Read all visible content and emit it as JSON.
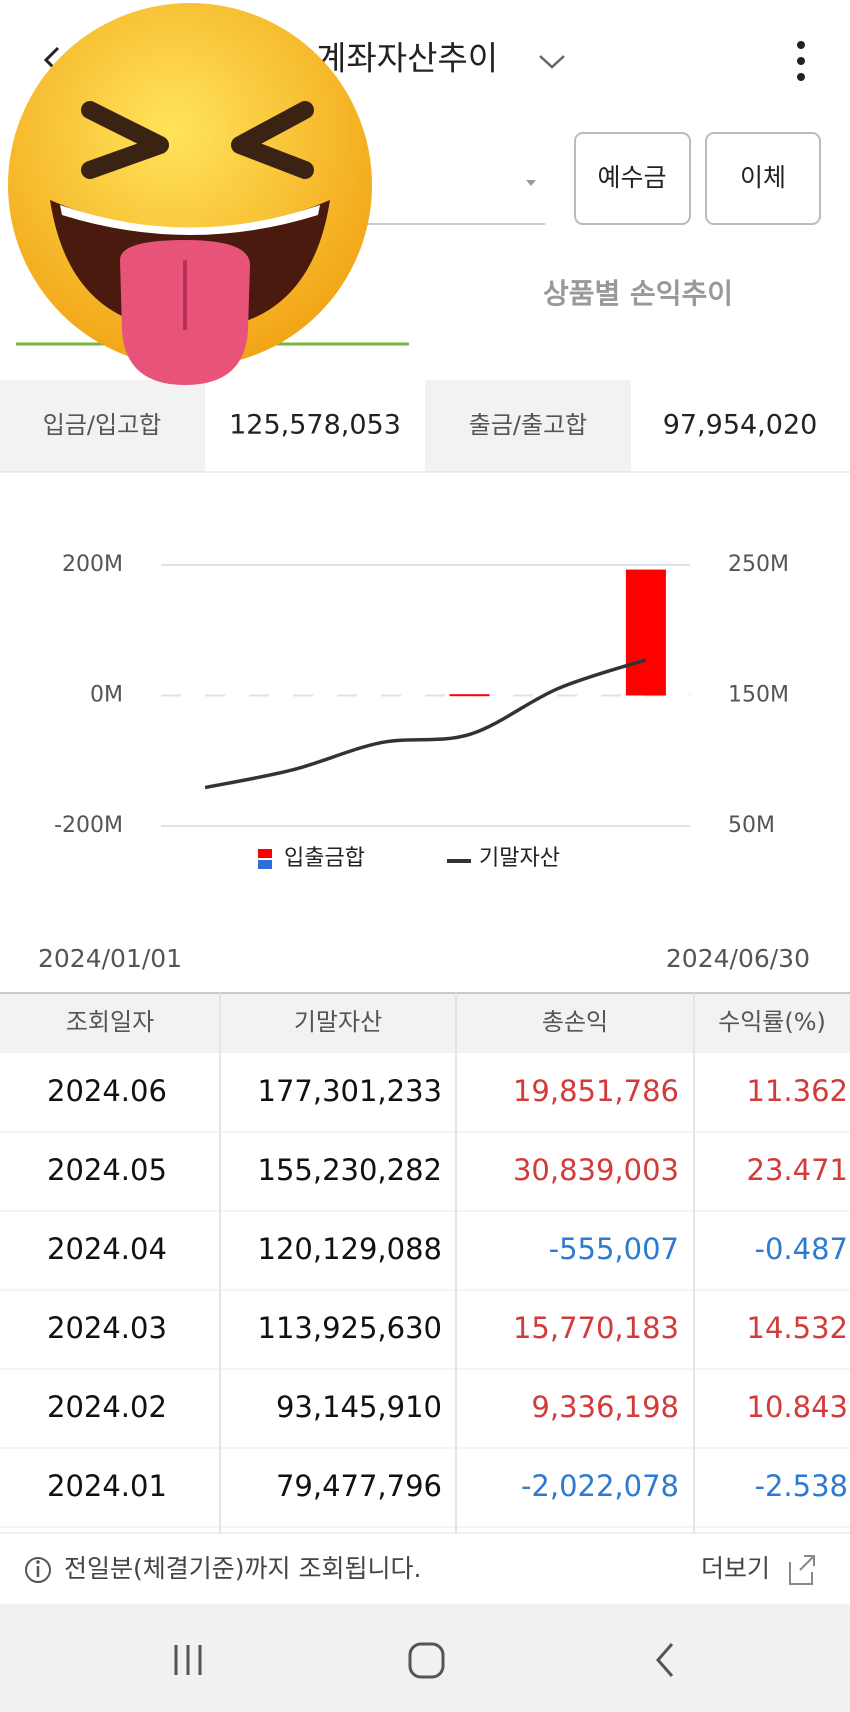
{
  "header": {
    "title": "계좌자산추이",
    "buttons": [
      "예수금",
      "이체"
    ],
    "tab": "상품별 손익추이"
  },
  "summary": {
    "in_label": "입금/입고합",
    "in_value": "125,578,053",
    "out_label": "출금/출고합",
    "out_value": "97,954,020"
  },
  "chart_data": {
    "type": "bar_line",
    "categories": [
      null,
      null,
      null,
      null,
      null,
      null
    ],
    "series": [
      {
        "name": "입출금합",
        "type": "bar",
        "color": "#ff0000",
        "values": [
          0,
          0,
          0,
          2000000,
          0,
          193000000
        ]
      },
      {
        "name": "기말자산",
        "type": "line",
        "axis": "y2",
        "color": "#333333",
        "values": [
          79477796,
          93145910,
          113925630,
          120129088,
          155230282,
          177301233
        ]
      }
    ],
    "ylim": [
      -200000000,
      200000000
    ],
    "yticks": [
      {
        "value": -200000000,
        "label": "-200M"
      },
      {
        "value": 0,
        "label": "0M"
      },
      {
        "value": 200000000,
        "label": "200M"
      }
    ],
    "y2lim": [
      50000000,
      250000000
    ],
    "y2ticks": [
      {
        "value": 50000000,
        "label": "50M"
      },
      {
        "value": 150000000,
        "label": "150M"
      },
      {
        "value": 250000000,
        "label": "250M"
      }
    ],
    "grid": true,
    "start_date": "2024/01/01",
    "end_date": "2024/06/30"
  },
  "table": {
    "columns": [
      "조회일자",
      "기말자산",
      "총손익",
      "수익률(%)"
    ],
    "rows": [
      [
        "2024.06",
        "177,301,233",
        "19,851,786",
        "11.362"
      ],
      [
        "2024.05",
        "155,230,282",
        "30,839,003",
        "23.471"
      ],
      [
        "2024.04",
        "120,129,088",
        "-555,007",
        "-0.487"
      ],
      [
        "2024.03",
        "113,925,630",
        "15,770,183",
        "14.532"
      ],
      [
        "2024.02",
        "93,145,910",
        "9,336,198",
        "10.843"
      ],
      [
        "2024.01",
        "79,477,796",
        "-2,022,078",
        "-2.538"
      ]
    ]
  },
  "footer": {
    "notice": "전일분(체결기준)까지 조회됩니다.",
    "more": "더보기"
  }
}
